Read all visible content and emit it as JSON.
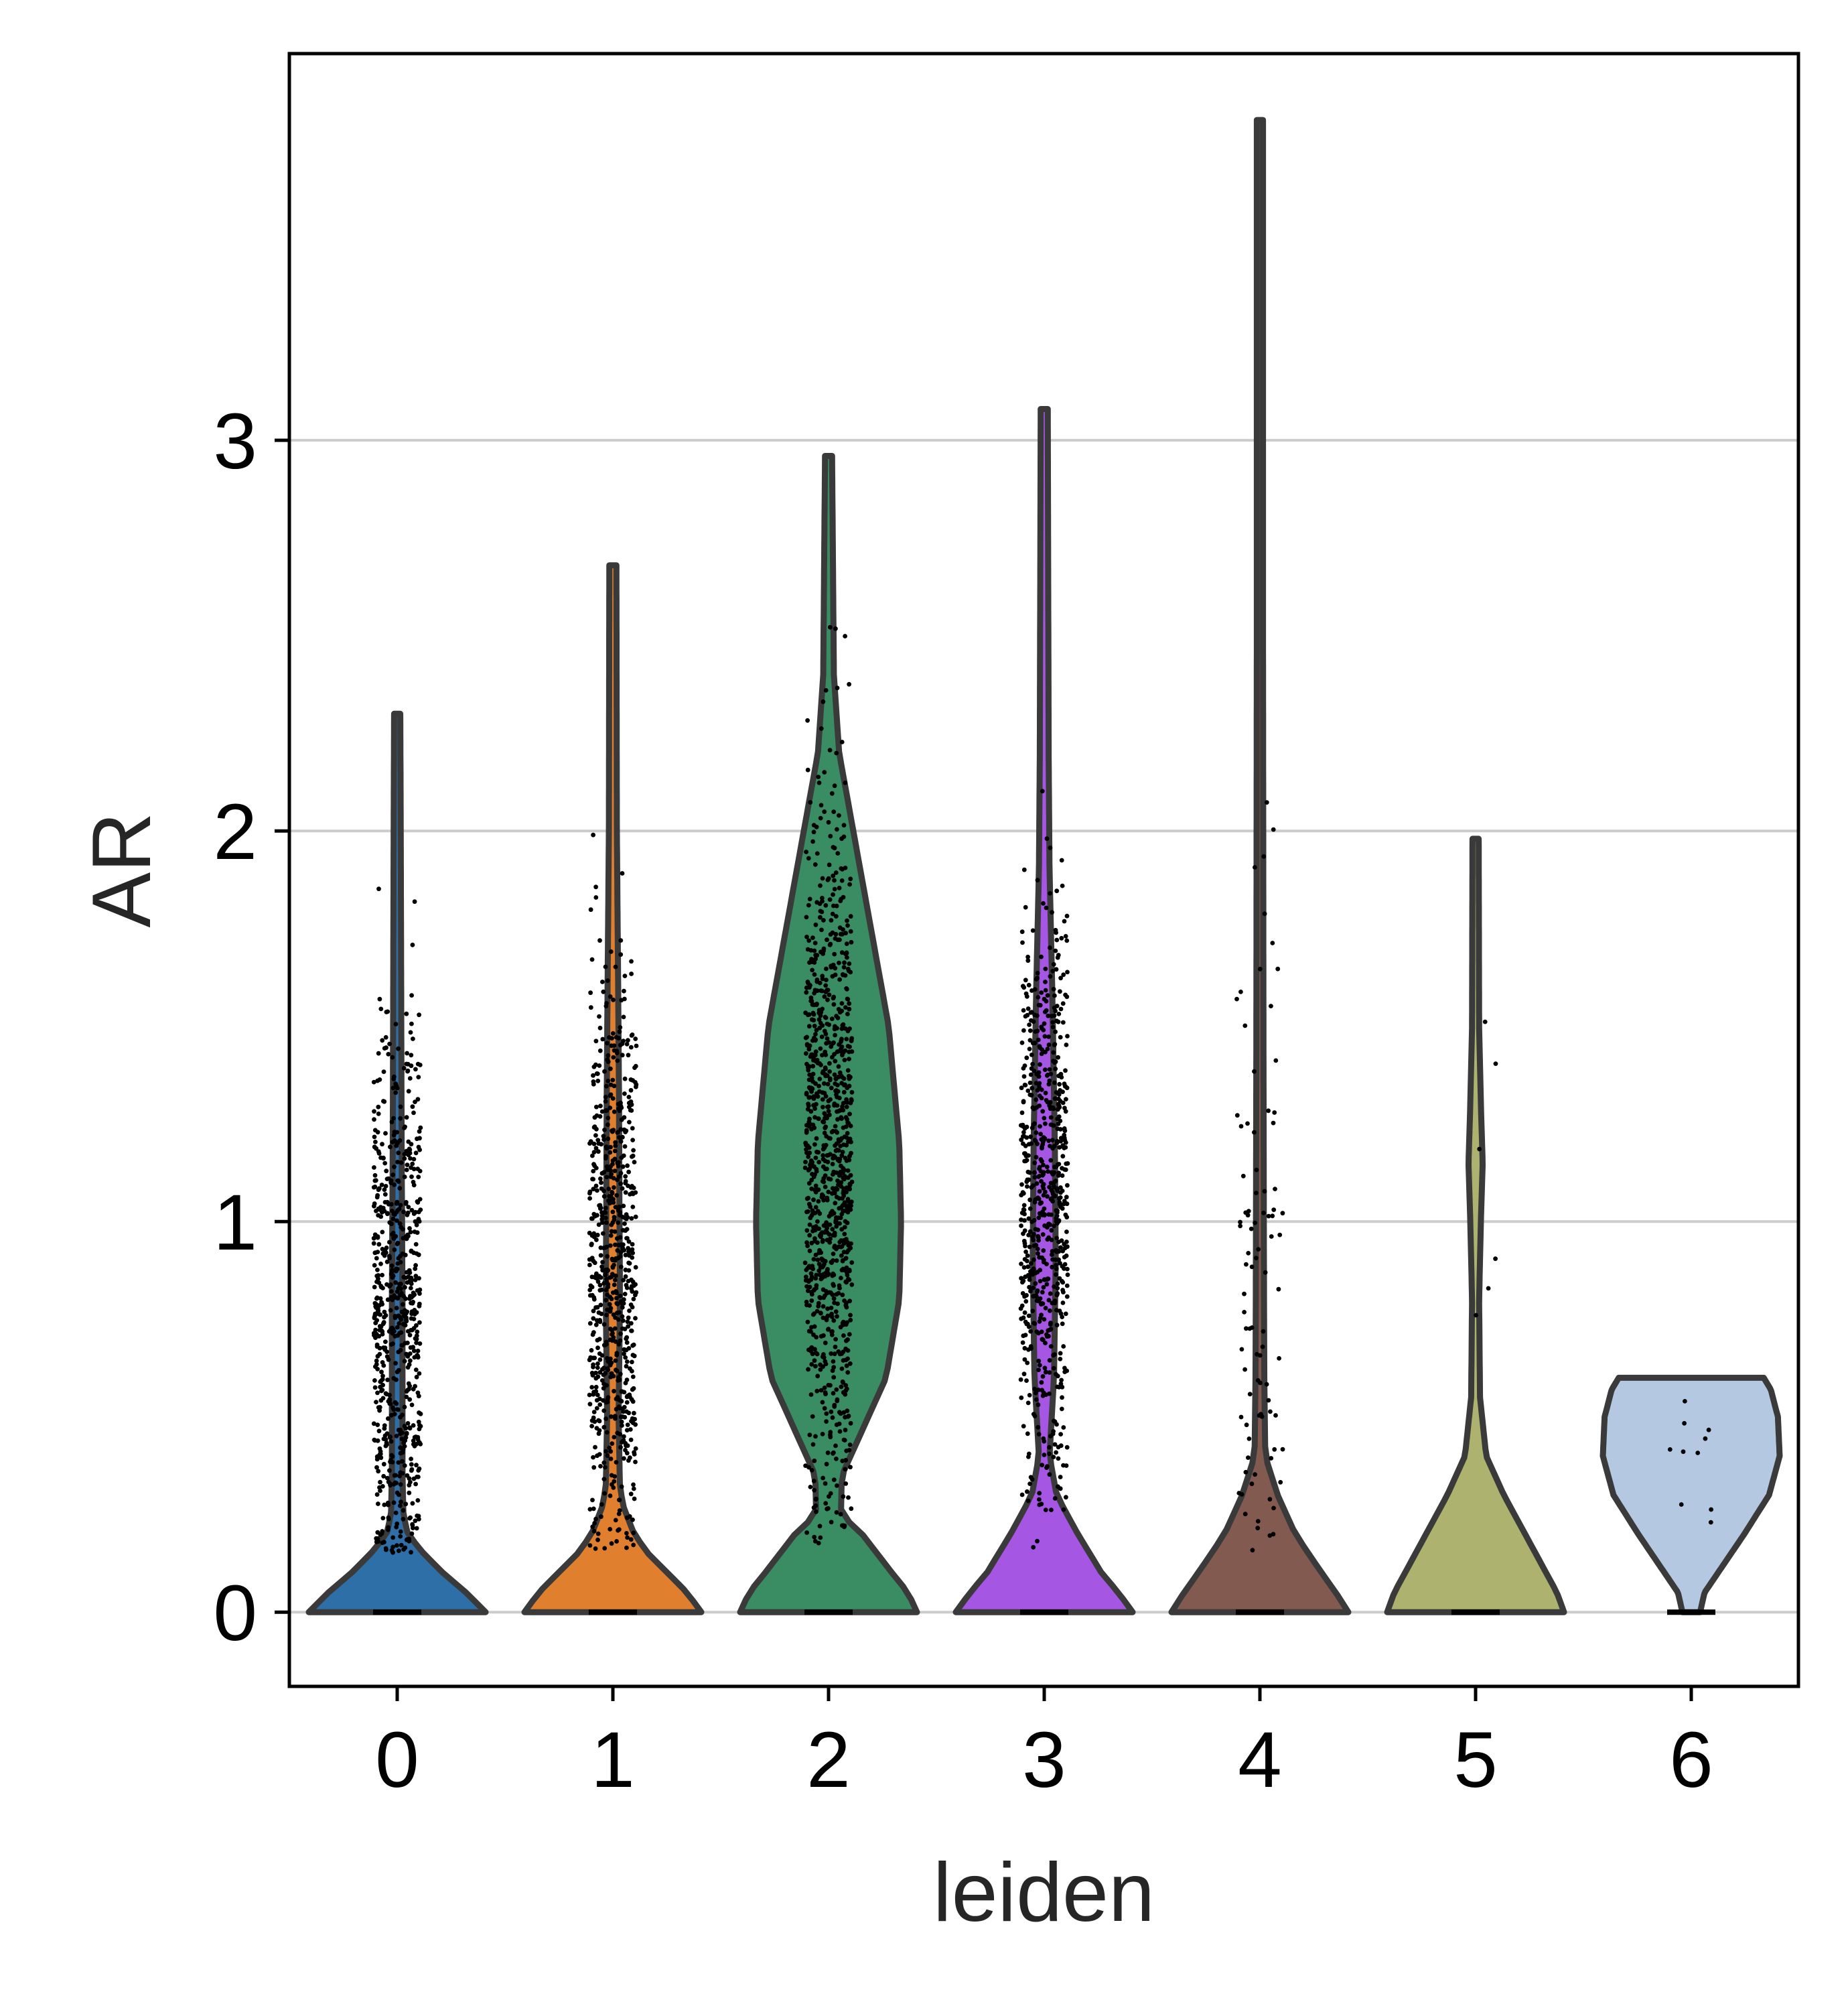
{
  "chart_data": {
    "type": "violin",
    "xlabel": "leiden",
    "ylabel": "AR",
    "ylim": [
      -0.19,
      3.99
    ],
    "y_ticks": [
      0,
      1,
      2,
      3
    ],
    "grid": {
      "y": true,
      "x": false
    },
    "categories": [
      "0",
      "1",
      "2",
      "3",
      "4",
      "5",
      "6"
    ],
    "colors": [
      "#2f6fa8",
      "#e0802e",
      "#3a8c63",
      "#a556e2",
      "#835a50",
      "#adb26e",
      "#b4c8e2"
    ],
    "outline_color": "#3a3a3a",
    "points_color": "#000000",
    "violins": [
      {
        "category": "0",
        "min": 0,
        "max": 2.3,
        "profile": [
          [
            0,
            1.0
          ],
          [
            0.05,
            0.78
          ],
          [
            0.1,
            0.52
          ],
          [
            0.15,
            0.3
          ],
          [
            0.2,
            0.12
          ],
          [
            0.25,
            0.07
          ],
          [
            0.35,
            0.06
          ],
          [
            0.5,
            0.06
          ],
          [
            0.8,
            0.06
          ],
          [
            1.2,
            0.05
          ],
          [
            1.6,
            0.045
          ],
          [
            2.0,
            0.04
          ],
          [
            2.3,
            0.035
          ]
        ],
        "dot_count": 700,
        "dot_mean": 0.75,
        "dot_sd": 0.38
      },
      {
        "category": "1",
        "min": 0,
        "max": 2.68,
        "profile": [
          [
            0,
            1.0
          ],
          [
            0.05,
            0.84
          ],
          [
            0.1,
            0.62
          ],
          [
            0.15,
            0.4
          ],
          [
            0.2,
            0.24
          ],
          [
            0.27,
            0.12
          ],
          [
            0.32,
            0.08
          ],
          [
            0.5,
            0.065
          ],
          [
            0.8,
            0.08
          ],
          [
            1.0,
            0.075
          ],
          [
            1.3,
            0.07
          ],
          [
            1.6,
            0.06
          ],
          [
            2.0,
            0.045
          ],
          [
            2.68,
            0.04
          ]
        ],
        "dot_count": 700,
        "dot_mean": 0.9,
        "dot_sd": 0.38
      },
      {
        "category": "2",
        "min": 0,
        "max": 2.96,
        "profile": [
          [
            0,
            1.0
          ],
          [
            0.05,
            0.9
          ],
          [
            0.1,
            0.72
          ],
          [
            0.2,
            0.38
          ],
          [
            0.25,
            0.14
          ],
          [
            0.35,
            0.15
          ],
          [
            0.45,
            0.35
          ],
          [
            0.6,
            0.65
          ],
          [
            0.8,
            0.8
          ],
          [
            1.0,
            0.82
          ],
          [
            1.2,
            0.8
          ],
          [
            1.5,
            0.68
          ],
          [
            1.8,
            0.44
          ],
          [
            2.0,
            0.28
          ],
          [
            2.2,
            0.12
          ],
          [
            2.4,
            0.06
          ],
          [
            2.96,
            0.04
          ]
        ],
        "dot_count": 1000,
        "dot_mean": 1.15,
        "dot_sd": 0.45
      },
      {
        "category": "3",
        "min": 0,
        "max": 3.08,
        "profile": [
          [
            0,
            1.0
          ],
          [
            0.05,
            0.84
          ],
          [
            0.1,
            0.65
          ],
          [
            0.2,
            0.38
          ],
          [
            0.3,
            0.14
          ],
          [
            0.4,
            0.06
          ],
          [
            0.6,
            0.11
          ],
          [
            0.9,
            0.13
          ],
          [
            1.2,
            0.12
          ],
          [
            1.6,
            0.09
          ],
          [
            1.9,
            0.06
          ],
          [
            2.2,
            0.05
          ],
          [
            3.08,
            0.04
          ]
        ],
        "dot_count": 700,
        "dot_mean": 1.05,
        "dot_sd": 0.38
      },
      {
        "category": "4",
        "min": 0,
        "max": 3.82,
        "profile": [
          [
            0,
            1.0
          ],
          [
            0.05,
            0.86
          ],
          [
            0.1,
            0.7
          ],
          [
            0.2,
            0.4
          ],
          [
            0.3,
            0.2
          ],
          [
            0.4,
            0.06
          ],
          [
            0.6,
            0.05
          ],
          [
            0.9,
            0.045
          ],
          [
            1.5,
            0.04
          ],
          [
            2.5,
            0.035
          ],
          [
            3.82,
            0.035
          ]
        ],
        "dot_count": 90,
        "dot_mean": 0.9,
        "dot_sd": 0.55
      },
      {
        "category": "5",
        "min": 0,
        "max": 1.98,
        "profile": [
          [
            0,
            1.0
          ],
          [
            0.05,
            0.92
          ],
          [
            0.1,
            0.8
          ],
          [
            0.2,
            0.56
          ],
          [
            0.3,
            0.32
          ],
          [
            0.4,
            0.12
          ],
          [
            0.55,
            0.05
          ],
          [
            0.8,
            0.04
          ],
          [
            1.0,
            0.06
          ],
          [
            1.15,
            0.08
          ],
          [
            1.3,
            0.06
          ],
          [
            1.5,
            0.04
          ],
          [
            1.98,
            0.035
          ]
        ],
        "dot_count": 6,
        "dot_mean": 1.05,
        "dot_sd": 0.3
      },
      {
        "category": "6",
        "min": 0,
        "max": 0.6,
        "profile": [
          [
            0,
            0.1
          ],
          [
            0.05,
            0.15
          ],
          [
            0.1,
            0.3
          ],
          [
            0.2,
            0.6
          ],
          [
            0.3,
            0.88
          ],
          [
            0.4,
            1.0
          ],
          [
            0.5,
            0.98
          ],
          [
            0.57,
            0.9
          ],
          [
            0.6,
            0.82
          ]
        ],
        "dot_count": 10,
        "dot_mean": 0.42,
        "dot_sd": 0.12
      }
    ]
  }
}
